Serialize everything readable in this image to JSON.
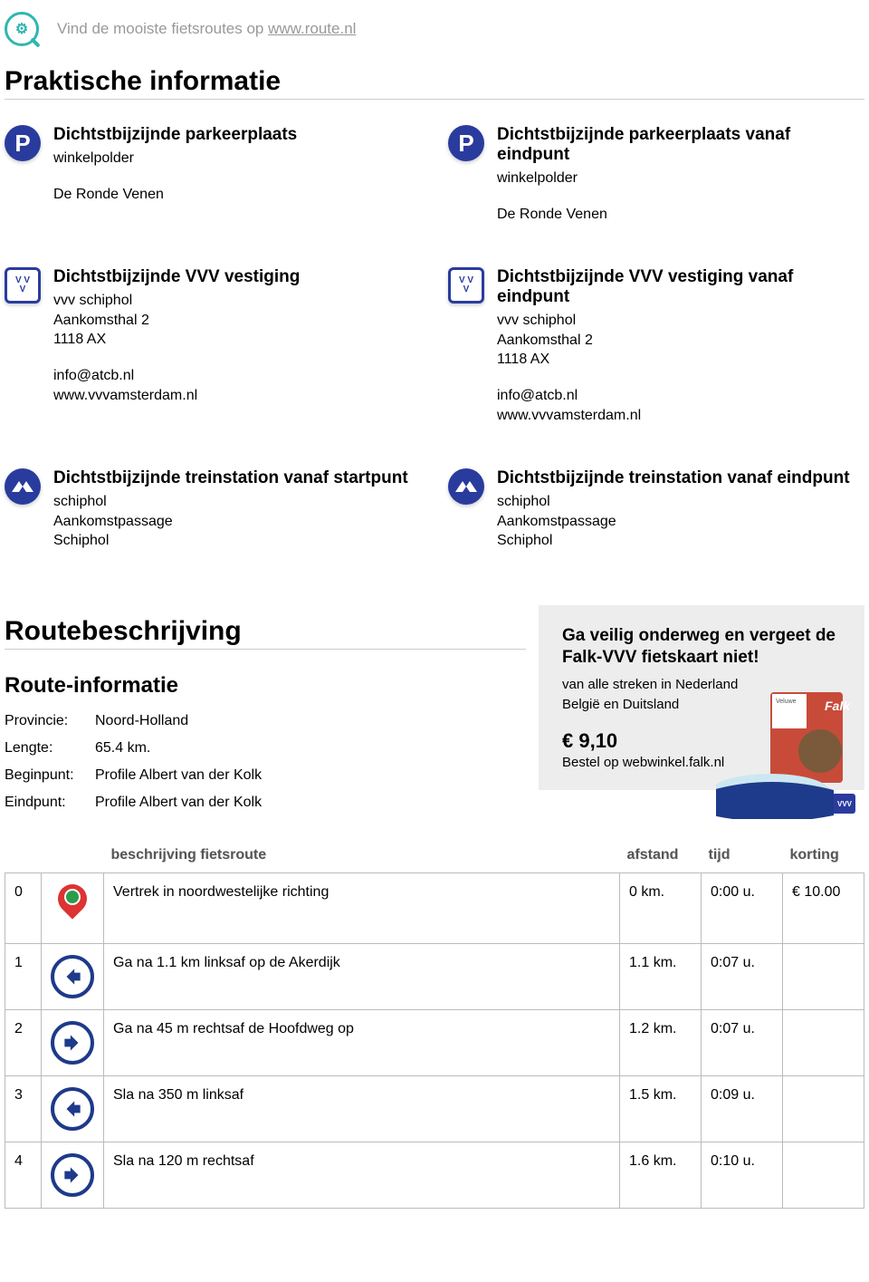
{
  "header": {
    "tagline_prefix": "Vind de mooiste fietsroutes op ",
    "tagline_link": "www.route.nl"
  },
  "section_practical_title": "Praktische informatie",
  "info_blocks": [
    {
      "icon": "parking",
      "title": "Dichtstbijzijnde parkeerplaats",
      "lines": [
        "winkelpolder"
      ],
      "lines2": [
        "De Ronde Venen"
      ]
    },
    {
      "icon": "parking",
      "title": "Dichtstbijzijnde parkeerplaats vanaf eindpunt",
      "lines": [
        "winkelpolder"
      ],
      "lines2": [
        "De Ronde Venen"
      ]
    },
    {
      "icon": "vvv",
      "title": "Dichtstbijzijnde VVV vestiging",
      "lines": [
        "vvv schiphol",
        "Aankomsthal 2",
        "1118 AX"
      ],
      "lines2": [
        "info@atcb.nl",
        "www.vvvamsterdam.nl"
      ]
    },
    {
      "icon": "vvv",
      "title": "Dichtstbijzijnde VVV vestiging vanaf eindpunt",
      "lines": [
        "vvv schiphol",
        "Aankomsthal 2",
        "1118 AX"
      ],
      "lines2": [
        "info@atcb.nl",
        "www.vvvamsterdam.nl"
      ]
    },
    {
      "icon": "ns",
      "title": "Dichtstbijzijnde treinstation vanaf startpunt",
      "lines": [
        "schiphol",
        "Aankomstpassage",
        "Schiphol"
      ],
      "lines2": []
    },
    {
      "icon": "ns",
      "title": "Dichtstbijzijnde treinstation vanaf eindpunt",
      "lines": [
        "schiphol",
        "Aankomstpassage",
        "Schiphol"
      ],
      "lines2": []
    }
  ],
  "section_route_title": "Routebeschrijving",
  "route_info": {
    "heading": "Route-informatie",
    "rows": [
      {
        "label": "Provincie:",
        "value": "Noord-Holland"
      },
      {
        "label": "Lengte:",
        "value": "65.4 km."
      },
      {
        "label": "Beginpunt:",
        "value": "Profile Albert van der Kolk"
      },
      {
        "label": "Eindpunt:",
        "value": "Profile Albert van der Kolk"
      }
    ]
  },
  "promo": {
    "title": "Ga veilig onderweg en vergeet de Falk-VVV fietskaart niet!",
    "line1": "van alle streken in Nederland",
    "line2": "België en Duitsland",
    "price": "€ 9,10",
    "order": "Bestel op webwinkel.falk.nl"
  },
  "table": {
    "headers": {
      "desc": "beschrijving fietsroute",
      "dist": "afstand",
      "time": "tijd",
      "disc": "korting"
    },
    "rows": [
      {
        "n": "0",
        "icon": "start",
        "desc": "Vertrek in noordwestelijke richting",
        "dist": "0 km.",
        "time": "0:00 u.",
        "disc": "€ 10.00"
      },
      {
        "n": "1",
        "icon": "left",
        "desc": "Ga na 1.1 km linksaf op de Akerdijk",
        "dist": "1.1 km.",
        "time": "0:07 u.",
        "disc": ""
      },
      {
        "n": "2",
        "icon": "right",
        "desc": "Ga na 45 m rechtsaf de Hoofdweg op",
        "dist": "1.2 km.",
        "time": "0:07 u.",
        "disc": ""
      },
      {
        "n": "3",
        "icon": "left",
        "desc": "Sla na 350 m linksaf",
        "dist": "1.5 km.",
        "time": "0:09 u.",
        "disc": ""
      },
      {
        "n": "4",
        "icon": "right",
        "desc": "Sla na 120 m rechtsaf",
        "dist": "1.6 km.",
        "time": "0:10 u.",
        "disc": ""
      }
    ]
  },
  "colors": {
    "accent_blue": "#2a3b9e",
    "dir_blue": "#1e3a8a",
    "teal": "#2fb6b0",
    "muted": "#999999",
    "border": "#bbbbbb",
    "promo_bg": "#ededed"
  }
}
